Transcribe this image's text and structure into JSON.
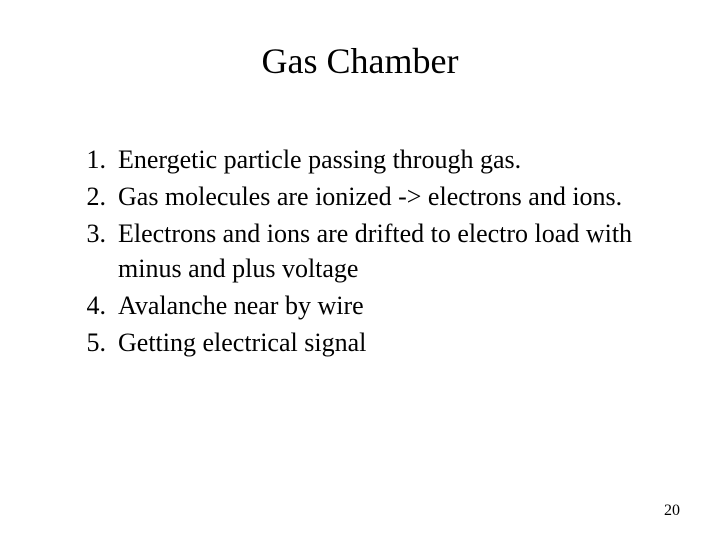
{
  "slide": {
    "title": "Gas Chamber",
    "background_color": "#ffffff",
    "text_color": "#000000",
    "title_fontsize": 36,
    "body_fontsize": 26,
    "font_family": "Times New Roman",
    "items": [
      {
        "number": "1.",
        "text": "Energetic particle passing through gas."
      },
      {
        "number": "2.",
        "text": "Gas molecules are ionized -> electrons and ions."
      },
      {
        "number": "3.",
        "text": "Electrons and ions are drifted to electro load with minus and plus voltage"
      },
      {
        "number": "4.",
        "text": "Avalanche near by wire"
      },
      {
        "number": "5.",
        "text": "Getting electrical signal"
      }
    ],
    "page_number": "20"
  }
}
